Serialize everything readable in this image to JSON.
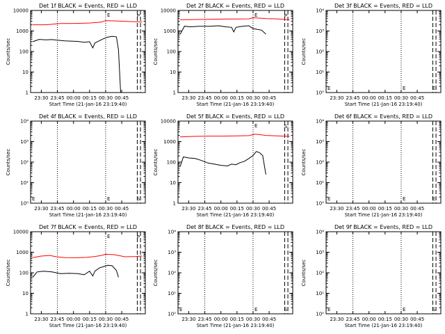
{
  "chart_data": [
    {
      "type": "line",
      "title": "Det 1f BLACK = Events, RED = LLD",
      "xlabel": "Start Time (21-Jan-16 23:19:40)",
      "ylabel": "Counts/sec",
      "yscale": "log",
      "ylim": [
        1,
        10000
      ],
      "ytick_labels": [
        "1",
        "10",
        "100",
        "1000",
        "10000"
      ],
      "xtick_labels": [
        "23:30",
        "23:45",
        "00:00",
        "00:15",
        "00:30",
        "00:45"
      ],
      "markers": [
        "E",
        "P"
      ],
      "series": [
        {
          "color": "#ff0000",
          "points": [
            [
              2,
              2000
            ],
            [
              14,
              2000
            ],
            [
              28,
              2300
            ],
            [
              42,
              2350
            ],
            [
              56,
              2450
            ],
            [
              66,
              2700
            ],
            [
              70,
              3200
            ],
            [
              82,
              3050
            ],
            [
              92,
              2900
            ],
            [
              98,
              2800
            ],
            [
              104,
              2750
            ]
          ]
        },
        {
          "color": "#000000",
          "points": [
            [
              2,
              300
            ],
            [
              8,
              390
            ],
            [
              14,
              370
            ],
            [
              20,
              380
            ],
            [
              26,
              350
            ],
            [
              32,
              330
            ],
            [
              38,
              320
            ],
            [
              44,
              310
            ],
            [
              50,
              280
            ],
            [
              55,
              300
            ],
            [
              58,
              150
            ],
            [
              60,
              260
            ],
            [
              64,
              330
            ],
            [
              68,
              420
            ],
            [
              72,
              500
            ],
            [
              76,
              550
            ],
            [
              80,
              520
            ],
            [
              82,
              120
            ],
            [
              84,
              0.1
            ]
          ]
        }
      ]
    },
    {
      "type": "line",
      "title": "Det 2f BLACK = Events, RED = LLD",
      "xlabel": "Start Time (21-Jan-16 23:19:40)",
      "ylabel": "Counts/sec",
      "yscale": "log",
      "ylim": [
        1,
        10000
      ],
      "ytick_labels": [
        "1",
        "10",
        "100",
        "1000",
        "10000"
      ],
      "xtick_labels": [
        "23:30",
        "23:45",
        "00:00",
        "00:15",
        "00:30",
        "00:45"
      ],
      "markers": [
        "E",
        "P"
      ],
      "series": [
        {
          "color": "#ff0000",
          "points": [
            [
              2,
              3500
            ],
            [
              14,
              3600
            ],
            [
              28,
              3700
            ],
            [
              42,
              3800
            ],
            [
              56,
              3850
            ],
            [
              66,
              3900
            ],
            [
              70,
              4400
            ],
            [
              82,
              4000
            ],
            [
              92,
              3900
            ],
            [
              98,
              3700
            ],
            [
              104,
              3500
            ]
          ]
        },
        {
          "color": "#000000",
          "points": [
            [
              2,
              700
            ],
            [
              6,
              1700
            ],
            [
              12,
              1600
            ],
            [
              20,
              1700
            ],
            [
              30,
              1700
            ],
            [
              38,
              1800
            ],
            [
              44,
              1600
            ],
            [
              50,
              1500
            ],
            [
              52,
              900
            ],
            [
              54,
              1500
            ],
            [
              60,
              1700
            ],
            [
              66,
              1800
            ],
            [
              70,
              1300
            ],
            [
              74,
              1200
            ],
            [
              78,
              1100
            ],
            [
              82,
              700
            ]
          ]
        }
      ]
    },
    {
      "type": "line",
      "title": "Det 3f BLACK = Events, RED = LLD",
      "xlabel": "Start Time (21-Jan-16 23:19:40)",
      "ylabel": "Counts/sec",
      "yscale": "log",
      "ylim": [
        1,
        10000
      ],
      "ytick_labels": [
        "10⁰",
        "10¹",
        "10²",
        "10³",
        "10⁴"
      ],
      "xtick_labels": [
        "23:30",
        "23:45",
        "00:00",
        "00:15",
        "00:30",
        "00:45"
      ],
      "markers": [
        "E",
        "E"
      ],
      "series": []
    },
    {
      "type": "line",
      "title": "Det 4f BLACK = Events, RED = LLD",
      "xlabel": "Start Time (21-Jan-16 23:19:40)",
      "ylabel": "Counts/sec",
      "yscale": "log",
      "ylim": [
        1,
        10000
      ],
      "ytick_labels": [
        "10⁰",
        "10¹",
        "10²",
        "10³",
        "10⁴"
      ],
      "xtick_labels": [
        "23:30",
        "23:45",
        "00:00",
        "00:15",
        "00:30",
        "00:45"
      ],
      "markers": [
        "E",
        "S"
      ],
      "series": []
    },
    {
      "type": "line",
      "title": "Det 5f BLACK = Events, RED = LLD",
      "xlabel": "Start Time (21-Jan-16 23:19:40)",
      "ylabel": "Counts/sec",
      "yscale": "log",
      "ylim": [
        1,
        10000
      ],
      "ytick_labels": [
        "1",
        "10",
        "100",
        "1000",
        "10000"
      ],
      "xtick_labels": [
        "23:30",
        "23:45",
        "00:00",
        "00:15",
        "00:30",
        "00:45"
      ],
      "markers": [
        "E",
        "S"
      ],
      "series": [
        {
          "color": "#ff0000",
          "points": [
            [
              2,
              1700
            ],
            [
              14,
              1800
            ],
            [
              28,
              1850
            ],
            [
              42,
              1850
            ],
            [
              56,
              1900
            ],
            [
              66,
              1950
            ],
            [
              72,
              2300
            ],
            [
              82,
              2000
            ],
            [
              92,
              1900
            ],
            [
              98,
              1850
            ],
            [
              104,
              1800
            ]
          ]
        },
        {
          "color": "#000000",
          "points": [
            [
              2,
              60
            ],
            [
              5,
              180
            ],
            [
              10,
              160
            ],
            [
              16,
              150
            ],
            [
              22,
              120
            ],
            [
              28,
              90
            ],
            [
              34,
              80
            ],
            [
              40,
              70
            ],
            [
              46,
              65
            ],
            [
              50,
              80
            ],
            [
              54,
              75
            ],
            [
              58,
              95
            ],
            [
              62,
              110
            ],
            [
              66,
              150
            ],
            [
              70,
              210
            ],
            [
              73,
              330
            ],
            [
              76,
              290
            ],
            [
              79,
              210
            ],
            [
              82,
              25
            ]
          ]
        }
      ]
    },
    {
      "type": "line",
      "title": "Det 6f BLACK = Events, RED = LLD",
      "xlabel": "Start Time (21-Jan-16 23:19:40)",
      "ylabel": "Counts/sec",
      "yscale": "log",
      "ylim": [
        1,
        10000
      ],
      "ytick_labels": [
        "10⁰",
        "10¹",
        "10²",
        "10³",
        "10⁴"
      ],
      "xtick_labels": [
        "23:30",
        "23:45",
        "00:00",
        "00:15",
        "00:30",
        "00:45"
      ],
      "markers": [
        "E",
        "E"
      ],
      "series": []
    },
    {
      "type": "line",
      "title": "Det 7f BLACK = Events, RED = LLD",
      "xlabel": "Start Time (21-Jan-16 23:19:40)",
      "ylabel": "Counts/sec",
      "yscale": "log",
      "ylim": [
        1,
        10000
      ],
      "ytick_labels": [
        "1",
        "10",
        "100",
        "1000",
        "10000"
      ],
      "xtick_labels": [
        "23:30",
        "23:45",
        "00:00",
        "00:15",
        "00:30",
        "00:45"
      ],
      "markers": [
        "E",
        "P"
      ],
      "series": [
        {
          "color": "#ff0000",
          "points": [
            [
              2,
              550
            ],
            [
              10,
              650
            ],
            [
              18,
              700
            ],
            [
              24,
              600
            ],
            [
              32,
              550
            ],
            [
              42,
              540
            ],
            [
              52,
              560
            ],
            [
              60,
              620
            ],
            [
              66,
              700
            ],
            [
              70,
              800
            ],
            [
              78,
              760
            ],
            [
              88,
              600
            ],
            [
              98,
              620
            ],
            [
              104,
              650
            ]
          ]
        },
        {
          "color": "#000000",
          "points": [
            [
              2,
              60
            ],
            [
              6,
              110
            ],
            [
              12,
              120
            ],
            [
              20,
              110
            ],
            [
              28,
              90
            ],
            [
              36,
              95
            ],
            [
              44,
              90
            ],
            [
              50,
              80
            ],
            [
              55,
              120
            ],
            [
              58,
              70
            ],
            [
              60,
              120
            ],
            [
              64,
              170
            ],
            [
              68,
              200
            ],
            [
              72,
              230
            ],
            [
              76,
              220
            ],
            [
              80,
              130
            ],
            [
              82,
              60
            ]
          ]
        }
      ]
    },
    {
      "type": "line",
      "title": "Det 8f BLACK = Events, RED = LLD",
      "xlabel": "Start Time (21-Jan-16 23:19:40)",
      "ylabel": "Counts/sec",
      "yscale": "log",
      "ylim": [
        1,
        10000
      ],
      "ytick_labels": [
        "10⁰",
        "10¹",
        "10²",
        "10³",
        "10⁴"
      ],
      "xtick_labels": [
        "23:30",
        "23:45",
        "00:00",
        "00:15",
        "00:30",
        "00:45"
      ],
      "markers": [
        "E",
        "S"
      ],
      "series": []
    },
    {
      "type": "line",
      "title": "Det 9f BLACK = Events, RED = LLD",
      "xlabel": "Start Time (21-Jan-16 23:19:40)",
      "ylabel": "Counts/sec",
      "yscale": "log",
      "ylim": [
        1,
        10000
      ],
      "ytick_labels": [
        "10⁰",
        "10¹",
        "10²",
        "10³",
        "10⁴"
      ],
      "xtick_labels": [
        "23:30",
        "23:45",
        "00:00",
        "00:15",
        "00:30",
        "00:45"
      ],
      "markers": [
        "E",
        "S"
      ],
      "series": []
    }
  ]
}
